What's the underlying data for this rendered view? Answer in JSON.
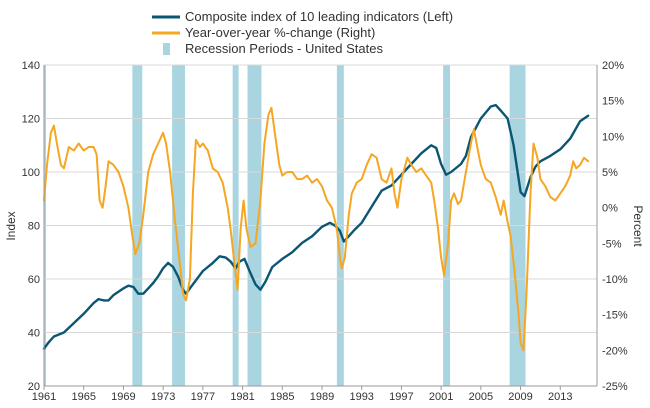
{
  "chart_data": {
    "type": "line",
    "legend_position": "top",
    "legend": [
      {
        "label": "Composite index of 10 leading indicators  (Left)",
        "kind": "line",
        "color": "#0b5672"
      },
      {
        "label": "Year-over-year %-change  (Right)",
        "kind": "line",
        "color": "#f5a623"
      },
      {
        "label": "Recession Periods - United States",
        "kind": "band",
        "color": "#a9d5e0"
      }
    ],
    "ylabel_left": "Index",
    "ylabel_right": "Percent",
    "xlim": [
      1961,
      2016.7
    ],
    "ylim_left": [
      20,
      140
    ],
    "ylim_right": [
      -25,
      20
    ],
    "grid": "horizontal",
    "x_ticks": [
      {
        "value": 1961,
        "label": "1961"
      },
      {
        "value": 1965,
        "label": "1965"
      },
      {
        "value": 1969,
        "label": "1969"
      },
      {
        "value": 1973,
        "label": "1973"
      },
      {
        "value": 1977,
        "label": "1977"
      },
      {
        "value": 1981,
        "label": "1981"
      },
      {
        "value": 1985,
        "label": "1985"
      },
      {
        "value": 1989,
        "label": "1989"
      },
      {
        "value": 1993,
        "label": "1993"
      },
      {
        "value": 1997,
        "label": "1997"
      },
      {
        "value": 2001,
        "label": "2001"
      },
      {
        "value": 2005,
        "label": "2005"
      },
      {
        "value": 2009,
        "label": "2009"
      },
      {
        "value": 2013,
        "label": "2013"
      }
    ],
    "y_left_ticks": [
      {
        "value": 20,
        "label": "20"
      },
      {
        "value": 40,
        "label": "40"
      },
      {
        "value": 60,
        "label": "60"
      },
      {
        "value": 80,
        "label": "80"
      },
      {
        "value": 100,
        "label": "100"
      },
      {
        "value": 120,
        "label": "120"
      },
      {
        "value": 140,
        "label": "140"
      }
    ],
    "y_right_ticks": [
      {
        "value": -25,
        "label": "-25%"
      },
      {
        "value": -20,
        "label": "-20%"
      },
      {
        "value": -15,
        "label": "-15%"
      },
      {
        "value": -10,
        "label": "-10%"
      },
      {
        "value": -5,
        "label": "-5%"
      },
      {
        "value": 0,
        "label": "0%"
      },
      {
        "value": 5,
        "label": "5%"
      },
      {
        "value": 10,
        "label": "10%"
      },
      {
        "value": 15,
        "label": "15%"
      },
      {
        "value": 20,
        "label": "20%"
      }
    ],
    "recessions": [
      {
        "start": 1961.0,
        "end": 1961.2
      },
      {
        "start": 1969.9,
        "end": 1970.9
      },
      {
        "start": 1973.9,
        "end": 1975.2
      },
      {
        "start": 1980.0,
        "end": 1980.6
      },
      {
        "start": 1981.5,
        "end": 1982.9
      },
      {
        "start": 1990.5,
        "end": 1991.2
      },
      {
        "start": 2001.2,
        "end": 2001.9
      },
      {
        "start": 2007.9,
        "end": 2009.5
      }
    ],
    "series": [
      {
        "name": "Composite index of 10 leading indicators  (Left)",
        "axis": "left",
        "color": "#0b5672",
        "points": [
          [
            1961.0,
            34
          ],
          [
            1961.5,
            36.5
          ],
          [
            1962.0,
            38.5
          ],
          [
            1963.0,
            40
          ],
          [
            1964.0,
            43.5
          ],
          [
            1965.0,
            47
          ],
          [
            1966.0,
            51
          ],
          [
            1966.5,
            52.5
          ],
          [
            1967.0,
            52
          ],
          [
            1967.5,
            52
          ],
          [
            1968.0,
            54
          ],
          [
            1969.0,
            56.5
          ],
          [
            1969.5,
            57.5
          ],
          [
            1970.0,
            57
          ],
          [
            1970.5,
            54.5
          ],
          [
            1971.0,
            54.5
          ],
          [
            1971.5,
            56.5
          ],
          [
            1972.0,
            58.5
          ],
          [
            1972.5,
            61
          ],
          [
            1973.0,
            64
          ],
          [
            1973.5,
            66
          ],
          [
            1974.0,
            64.5
          ],
          [
            1974.5,
            61
          ],
          [
            1975.0,
            56
          ],
          [
            1975.3,
            54.5
          ],
          [
            1975.8,
            57
          ],
          [
            1976.5,
            60.5
          ],
          [
            1977.0,
            63
          ],
          [
            1978.0,
            66
          ],
          [
            1978.7,
            68.5
          ],
          [
            1979.3,
            68
          ],
          [
            1979.8,
            66.5
          ],
          [
            1980.3,
            64
          ],
          [
            1980.7,
            66.5
          ],
          [
            1981.2,
            67.5
          ],
          [
            1981.7,
            63
          ],
          [
            1982.3,
            58
          ],
          [
            1982.8,
            56
          ],
          [
            1983.3,
            59
          ],
          [
            1984.0,
            64.5
          ],
          [
            1985.0,
            67.5
          ],
          [
            1986.0,
            70
          ],
          [
            1987.0,
            73.5
          ],
          [
            1988.0,
            76
          ],
          [
            1989.0,
            79.5
          ],
          [
            1989.8,
            81
          ],
          [
            1990.3,
            80
          ],
          [
            1990.8,
            78
          ],
          [
            1991.2,
            74
          ],
          [
            1991.7,
            76
          ],
          [
            1992.3,
            78.5
          ],
          [
            1993.0,
            81
          ],
          [
            1994.0,
            87
          ],
          [
            1995.0,
            93
          ],
          [
            1996.0,
            95
          ],
          [
            1997.0,
            99
          ],
          [
            1998.0,
            103
          ],
          [
            1999.0,
            107
          ],
          [
            2000.0,
            110
          ],
          [
            2000.5,
            109
          ],
          [
            2001.0,
            103
          ],
          [
            2001.5,
            99
          ],
          [
            2002.0,
            100
          ],
          [
            2003.0,
            103
          ],
          [
            2003.5,
            106
          ],
          [
            2004.0,
            113
          ],
          [
            2005.0,
            120
          ],
          [
            2006.0,
            124.5
          ],
          [
            2006.5,
            125
          ],
          [
            2007.0,
            123
          ],
          [
            2007.7,
            120
          ],
          [
            2008.3,
            110
          ],
          [
            2009.0,
            92.5
          ],
          [
            2009.4,
            91
          ],
          [
            2010.0,
            98
          ],
          [
            2010.5,
            102
          ],
          [
            2011.0,
            104
          ],
          [
            2012.0,
            106
          ],
          [
            2013.0,
            108.5
          ],
          [
            2014.0,
            112.5
          ],
          [
            2015.0,
            119
          ],
          [
            2015.8,
            121
          ]
        ]
      },
      {
        "name": "Year-over-year %-change  (Right)",
        "axis": "right",
        "color": "#f5a623",
        "points": [
          [
            1961.0,
            1
          ],
          [
            1961.3,
            6
          ],
          [
            1961.7,
            10.5
          ],
          [
            1962.0,
            11.5
          ],
          [
            1962.3,
            9
          ],
          [
            1962.7,
            6
          ],
          [
            1963.0,
            5.5
          ],
          [
            1963.5,
            8.5
          ],
          [
            1964.0,
            8
          ],
          [
            1964.5,
            9
          ],
          [
            1965.0,
            8
          ],
          [
            1965.5,
            8.5
          ],
          [
            1966.0,
            8.5
          ],
          [
            1966.3,
            7.5
          ],
          [
            1966.6,
            1
          ],
          [
            1966.9,
            0
          ],
          [
            1967.2,
            3
          ],
          [
            1967.5,
            6.5
          ],
          [
            1968.0,
            6
          ],
          [
            1968.5,
            5
          ],
          [
            1969.0,
            3
          ],
          [
            1969.5,
            0
          ],
          [
            1969.9,
            -4
          ],
          [
            1970.2,
            -6.5
          ],
          [
            1970.6,
            -5
          ],
          [
            1971.0,
            -1
          ],
          [
            1971.5,
            5
          ],
          [
            1972.0,
            7.5
          ],
          [
            1972.5,
            9
          ],
          [
            1973.0,
            10.5
          ],
          [
            1973.3,
            9
          ],
          [
            1973.7,
            5
          ],
          [
            1974.2,
            -2
          ],
          [
            1974.7,
            -8
          ],
          [
            1975.0,
            -12
          ],
          [
            1975.3,
            -13
          ],
          [
            1975.7,
            -10
          ],
          [
            1976.0,
            2
          ],
          [
            1976.3,
            9.5
          ],
          [
            1976.7,
            8.5
          ],
          [
            1977.0,
            9
          ],
          [
            1977.5,
            8
          ],
          [
            1978.0,
            5.5
          ],
          [
            1978.5,
            5
          ],
          [
            1979.0,
            3.5
          ],
          [
            1979.5,
            0
          ],
          [
            1979.8,
            -3
          ],
          [
            1980.2,
            -8
          ],
          [
            1980.5,
            -11.5
          ],
          [
            1980.8,
            -3
          ],
          [
            1981.1,
            1
          ],
          [
            1981.4,
            -3
          ],
          [
            1981.8,
            -5.5
          ],
          [
            1982.3,
            -5
          ],
          [
            1982.8,
            1
          ],
          [
            1983.2,
            9
          ],
          [
            1983.6,
            13
          ],
          [
            1983.9,
            14
          ],
          [
            1984.3,
            10
          ],
          [
            1984.7,
            6
          ],
          [
            1985.0,
            4.5
          ],
          [
            1985.5,
            5
          ],
          [
            1986.0,
            5
          ],
          [
            1986.5,
            4
          ],
          [
            1987.0,
            4
          ],
          [
            1987.5,
            4.5
          ],
          [
            1988.0,
            3.5
          ],
          [
            1988.5,
            4
          ],
          [
            1989.0,
            3
          ],
          [
            1989.5,
            1
          ],
          [
            1990.0,
            0
          ],
          [
            1990.5,
            -3
          ],
          [
            1990.8,
            -7
          ],
          [
            1991.0,
            -8.5
          ],
          [
            1991.3,
            -7
          ],
          [
            1991.7,
            -1
          ],
          [
            1992.0,
            2
          ],
          [
            1992.5,
            3.5
          ],
          [
            1993.0,
            4
          ],
          [
            1993.5,
            6
          ],
          [
            1994.0,
            7.5
          ],
          [
            1994.5,
            7
          ],
          [
            1995.0,
            4
          ],
          [
            1995.5,
            3.5
          ],
          [
            1996.0,
            5.5
          ],
          [
            1996.3,
            2
          ],
          [
            1996.6,
            0
          ],
          [
            1997.0,
            4
          ],
          [
            1997.3,
            5.5
          ],
          [
            1997.6,
            7
          ],
          [
            1998.0,
            6
          ],
          [
            1998.5,
            5
          ],
          [
            1999.0,
            5.5
          ],
          [
            1999.5,
            4.5
          ],
          [
            2000.0,
            3.5
          ],
          [
            2000.3,
            1
          ],
          [
            2000.7,
            -3
          ],
          [
            2001.0,
            -7
          ],
          [
            2001.3,
            -9.5
          ],
          [
            2001.7,
            -5
          ],
          [
            2002.0,
            1
          ],
          [
            2002.3,
            2
          ],
          [
            2002.7,
            0.5
          ],
          [
            2003.0,
            1
          ],
          [
            2003.5,
            5
          ],
          [
            2004.0,
            9
          ],
          [
            2004.3,
            11
          ],
          [
            2004.7,
            8
          ],
          [
            2005.0,
            6
          ],
          [
            2005.5,
            4
          ],
          [
            2006.0,
            3.5
          ],
          [
            2006.5,
            1.5
          ],
          [
            2007.0,
            -1
          ],
          [
            2007.3,
            1
          ],
          [
            2007.7,
            -2
          ],
          [
            2008.0,
            -4
          ],
          [
            2008.4,
            -9
          ],
          [
            2008.8,
            -15
          ],
          [
            2009.0,
            -19
          ],
          [
            2009.3,
            -20
          ],
          [
            2009.6,
            -12
          ],
          [
            2010.0,
            2
          ],
          [
            2010.3,
            9
          ],
          [
            2010.7,
            7
          ],
          [
            2011.0,
            4
          ],
          [
            2011.5,
            3
          ],
          [
            2012.0,
            1.5
          ],
          [
            2012.5,
            1
          ],
          [
            2013.0,
            2
          ],
          [
            2013.5,
            3
          ],
          [
            2014.0,
            4.5
          ],
          [
            2014.3,
            6.5
          ],
          [
            2014.6,
            5.5
          ],
          [
            2015.0,
            6
          ],
          [
            2015.4,
            7
          ],
          [
            2015.8,
            6.5
          ]
        ]
      }
    ]
  }
}
